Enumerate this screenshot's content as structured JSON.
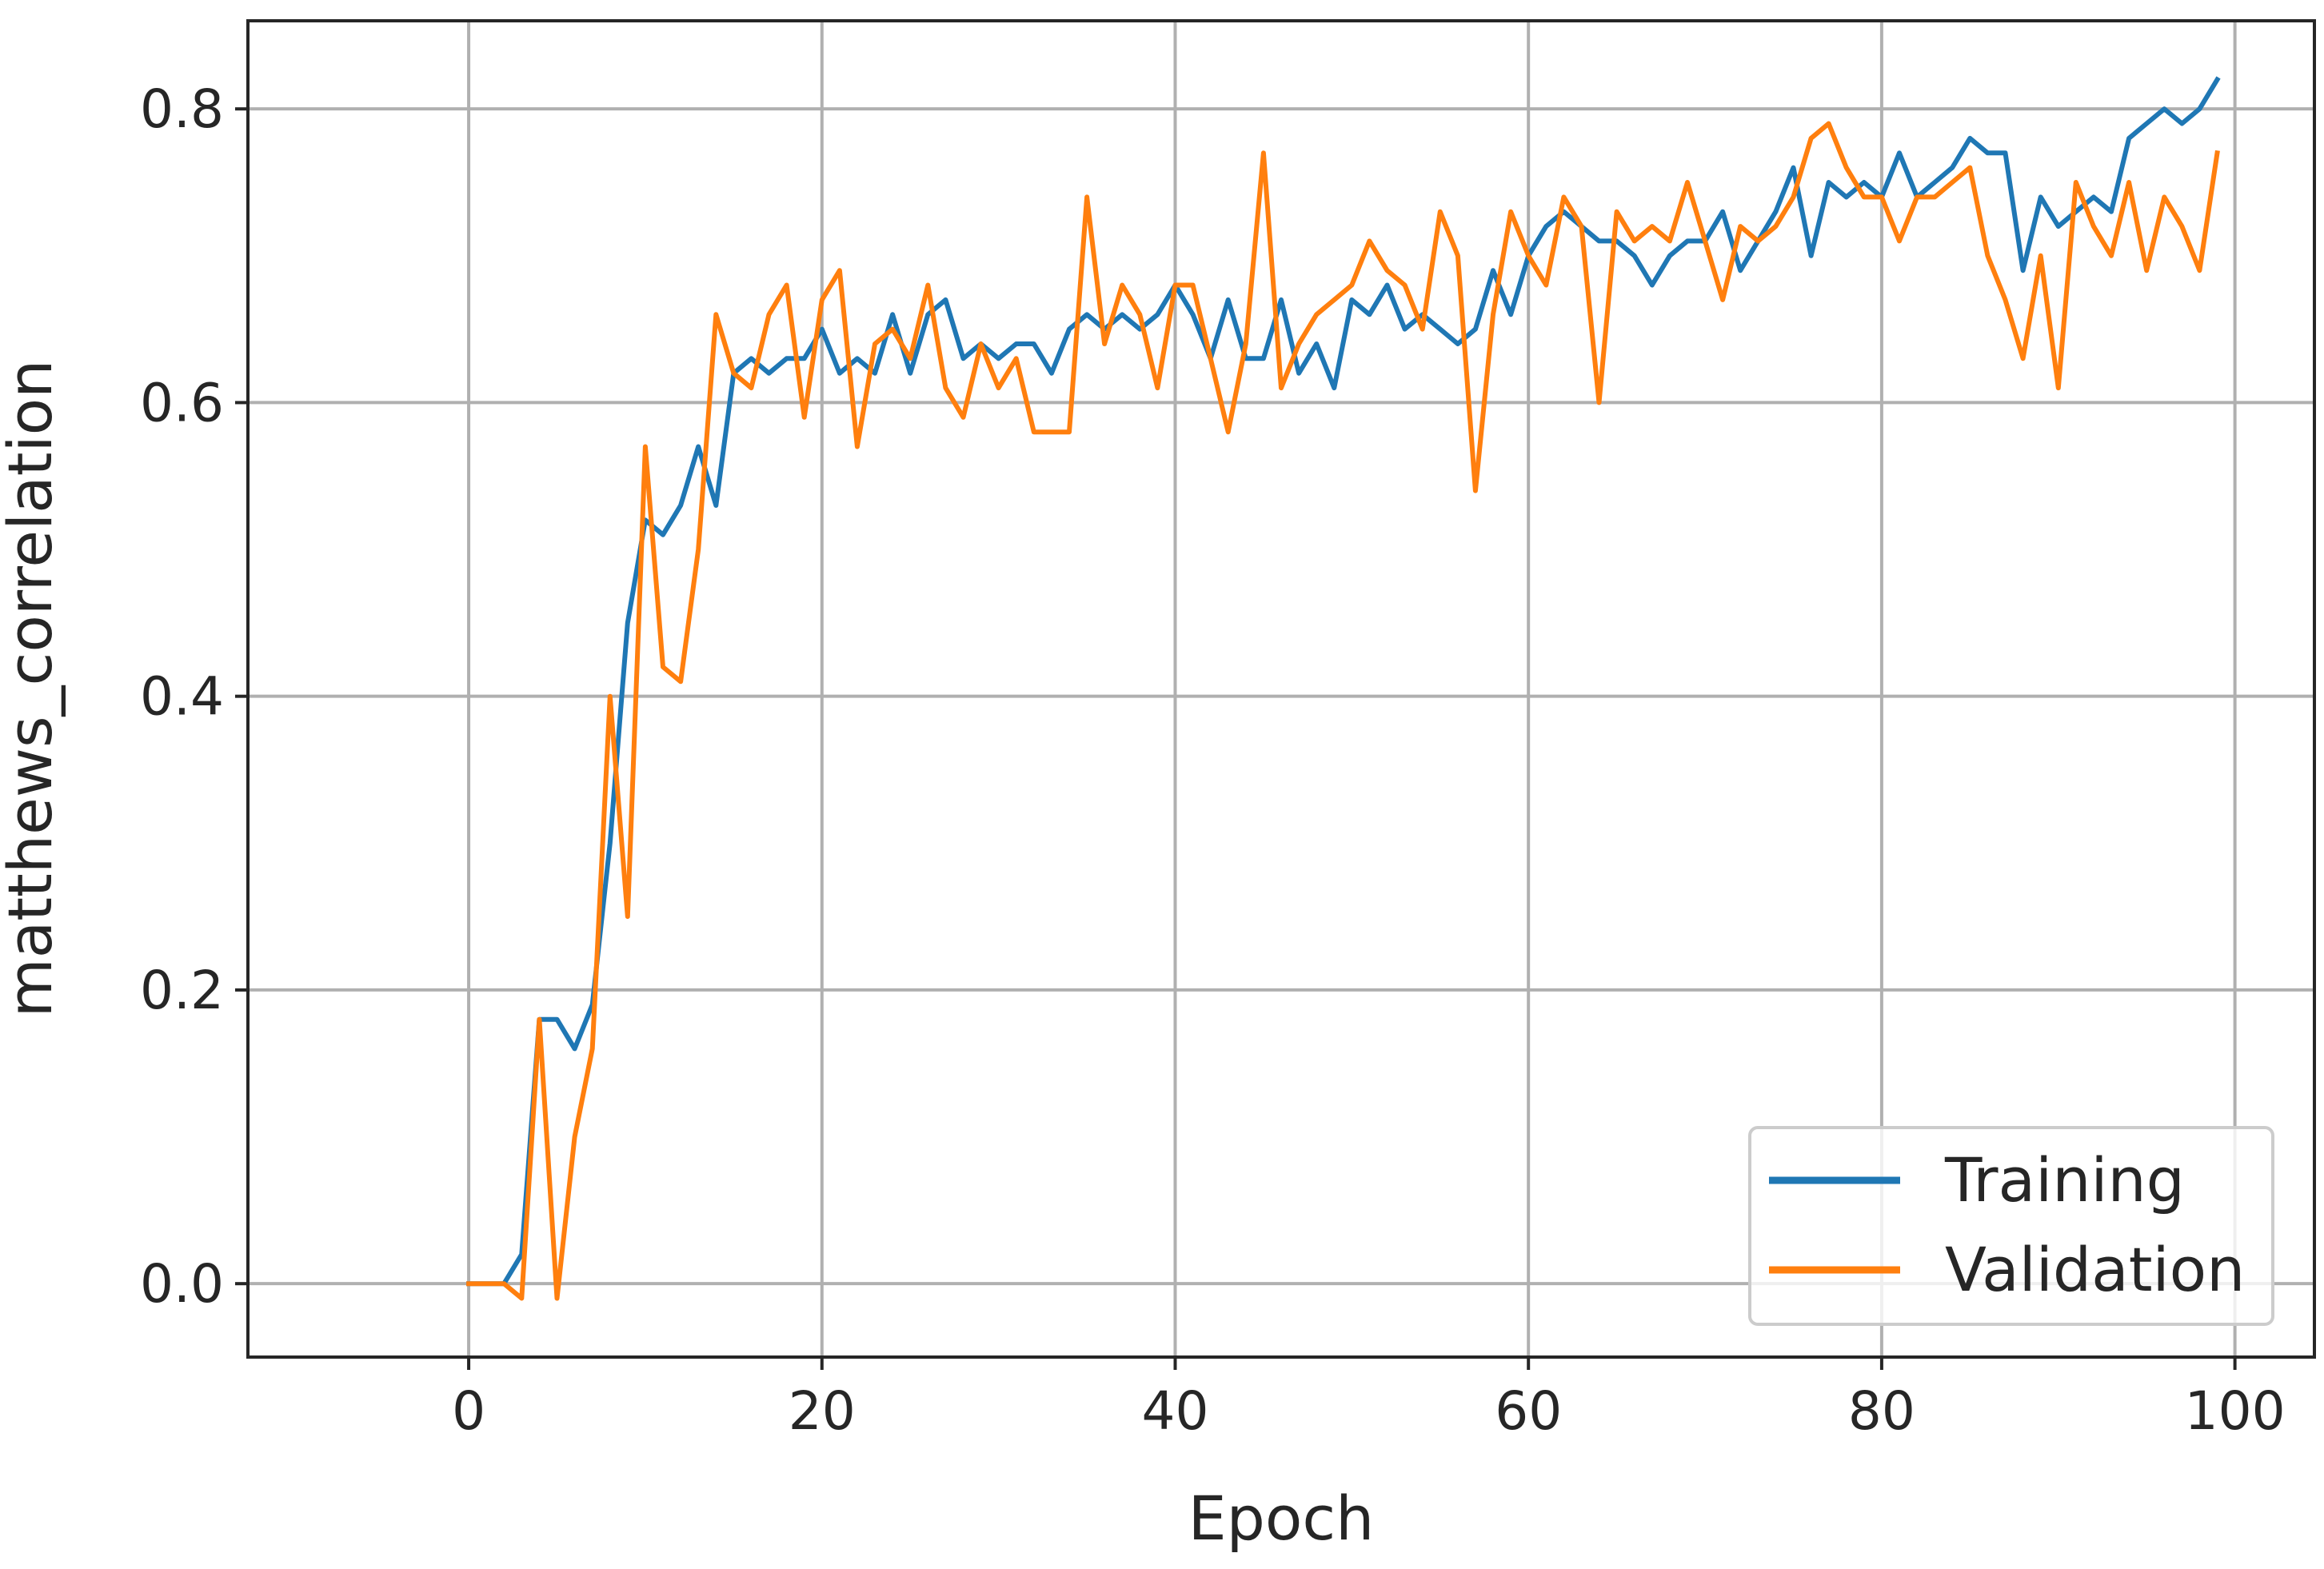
{
  "chart_data": {
    "type": "line",
    "xlabel": "Epoch",
    "ylabel": "matthews_correlation",
    "xlim": [
      -12.5,
      104.5
    ],
    "ylim": [
      -0.05,
      0.86
    ],
    "xticks": [
      "0",
      "20",
      "40",
      "60",
      "80",
      "100"
    ],
    "yticks": [
      "0.0",
      "0.2",
      "0.4",
      "0.6",
      "0.8"
    ],
    "grid": true,
    "legend_position": "lower-right",
    "series": [
      {
        "name": "Training",
        "color": "#1f77b4",
        "values": [
          0.0,
          0.0,
          0.0,
          0.02,
          0.18,
          0.18,
          0.16,
          0.19,
          0.3,
          0.45,
          0.52,
          0.51,
          0.53,
          0.57,
          0.53,
          0.62,
          0.63,
          0.62,
          0.63,
          0.63,
          0.65,
          0.62,
          0.63,
          0.62,
          0.66,
          0.62,
          0.66,
          0.67,
          0.63,
          0.64,
          0.63,
          0.64,
          0.64,
          0.62,
          0.65,
          0.66,
          0.65,
          0.66,
          0.65,
          0.66,
          0.68,
          0.66,
          0.63,
          0.67,
          0.63,
          0.63,
          0.67,
          0.62,
          0.64,
          0.61,
          0.67,
          0.66,
          0.68,
          0.65,
          0.66,
          0.65,
          0.64,
          0.65,
          0.69,
          0.66,
          0.7,
          0.72,
          0.73,
          0.72,
          0.71,
          0.71,
          0.7,
          0.68,
          0.7,
          0.71,
          0.71,
          0.73,
          0.69,
          0.71,
          0.73,
          0.76,
          0.7,
          0.75,
          0.74,
          0.75,
          0.74,
          0.77,
          0.74,
          0.75,
          0.76,
          0.78,
          0.77,
          0.77,
          0.69,
          0.74,
          0.72,
          0.73,
          0.74,
          0.73,
          0.78,
          0.79,
          0.8,
          0.79,
          0.8,
          0.82
        ]
      },
      {
        "name": "Validation",
        "color": "#ff7f0e",
        "values": [
          0.0,
          0.0,
          0.0,
          -0.01,
          0.18,
          -0.01,
          0.1,
          0.16,
          0.4,
          0.25,
          0.57,
          0.42,
          0.41,
          0.5,
          0.66,
          0.62,
          0.61,
          0.66,
          0.68,
          0.59,
          0.67,
          0.69,
          0.57,
          0.64,
          0.65,
          0.63,
          0.68,
          0.61,
          0.59,
          0.64,
          0.61,
          0.63,
          0.58,
          0.58,
          0.58,
          0.74,
          0.64,
          0.68,
          0.66,
          0.61,
          0.68,
          0.68,
          0.63,
          0.58,
          0.64,
          0.77,
          0.61,
          0.64,
          0.66,
          0.67,
          0.68,
          0.71,
          0.69,
          0.68,
          0.65,
          0.73,
          0.7,
          0.54,
          0.66,
          0.73,
          0.7,
          0.68,
          0.74,
          0.72,
          0.6,
          0.73,
          0.71,
          0.72,
          0.71,
          0.75,
          0.71,
          0.67,
          0.72,
          0.71,
          0.72,
          0.74,
          0.78,
          0.79,
          0.76,
          0.74,
          0.74,
          0.71,
          0.74,
          0.74,
          0.75,
          0.76,
          0.7,
          0.67,
          0.63,
          0.7,
          0.61,
          0.75,
          0.72,
          0.7,
          0.75,
          0.69,
          0.74,
          0.72,
          0.69,
          0.77
        ]
      }
    ]
  }
}
